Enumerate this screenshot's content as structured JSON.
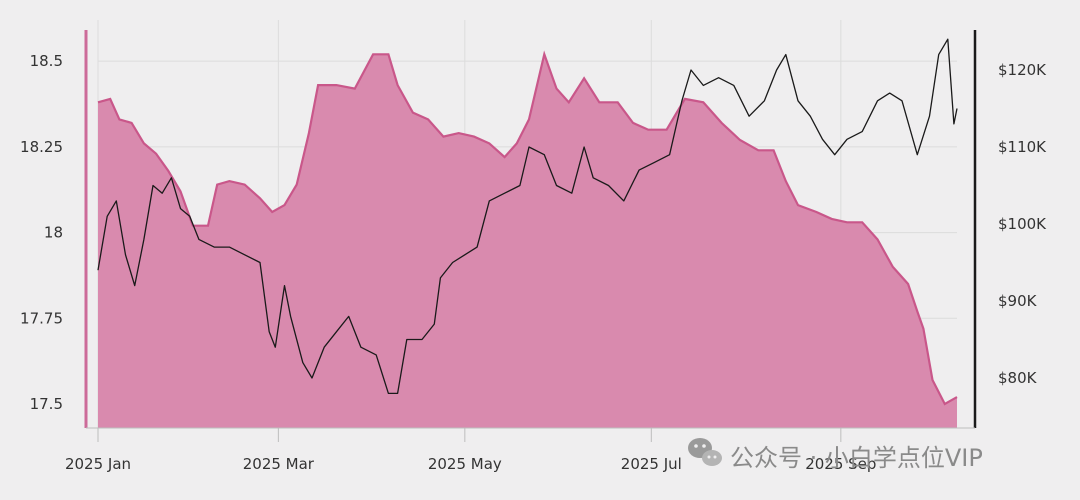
{
  "chart_data": {
    "type": "area",
    "title": "",
    "xlabel": "",
    "ylabel_left": "",
    "ylabel_right": "",
    "x_ticks": [
      "2025 Jan",
      "2025 Mar",
      "2025 May",
      "2025 Jul",
      "2025 Sep"
    ],
    "x_tick_dates": [
      "2025-01-01",
      "2025-03-01",
      "2025-05-01",
      "2025-07-01",
      "2025-09-01"
    ],
    "xlim": [
      "2025-01-01",
      "2025-10-09"
    ],
    "y_left": {
      "ticks": [
        "18.5",
        "18.25",
        "18",
        "17.75",
        "17.5"
      ],
      "tick_values": [
        18.5,
        18.25,
        18.0,
        17.75,
        17.5
      ],
      "lim": [
        17.43,
        18.62
      ]
    },
    "y_right": {
      "ticks": [
        "$120K",
        "$110K",
        "$100K",
        "$90K",
        "$80K"
      ],
      "tick_values": [
        120000,
        110000,
        100000,
        90000,
        80000
      ],
      "lim": [
        73500,
        126500
      ]
    },
    "grid": true,
    "colors": {
      "area_fill": "#d98aae",
      "area_line": "#c9578a",
      "price_line": "#1a1a1a",
      "left_axis": "#cc6b99",
      "right_axis": "#1a1a1a",
      "grid": "#dcdcdc",
      "background": "#efeeef"
    },
    "series": [
      {
        "axis": "left",
        "style": "area",
        "points": [
          [
            "2025-01-01",
            18.38
          ],
          [
            "2025-01-05",
            18.39
          ],
          [
            "2025-01-08",
            18.33
          ],
          [
            "2025-01-12",
            18.32
          ],
          [
            "2025-01-16",
            18.26
          ],
          [
            "2025-01-20",
            18.23
          ],
          [
            "2025-01-24",
            18.18
          ],
          [
            "2025-01-28",
            18.12
          ],
          [
            "2025-02-01",
            18.02
          ],
          [
            "2025-02-06",
            18.02
          ],
          [
            "2025-02-09",
            18.14
          ],
          [
            "2025-02-13",
            18.15
          ],
          [
            "2025-02-18",
            18.14
          ],
          [
            "2025-02-23",
            18.1
          ],
          [
            "2025-02-27",
            18.06
          ],
          [
            "2025-03-03",
            18.08
          ],
          [
            "2025-03-07",
            18.14
          ],
          [
            "2025-03-11",
            18.29
          ],
          [
            "2025-03-14",
            18.43
          ],
          [
            "2025-03-20",
            18.43
          ],
          [
            "2025-03-26",
            18.42
          ],
          [
            "2025-04-01",
            18.52
          ],
          [
            "2025-04-06",
            18.52
          ],
          [
            "2025-04-09",
            18.43
          ],
          [
            "2025-04-14",
            18.35
          ],
          [
            "2025-04-19",
            18.33
          ],
          [
            "2025-04-24",
            18.28
          ],
          [
            "2025-04-29",
            18.29
          ],
          [
            "2025-05-04",
            18.28
          ],
          [
            "2025-05-09",
            18.26
          ],
          [
            "2025-05-14",
            18.22
          ],
          [
            "2025-05-18",
            18.26
          ],
          [
            "2025-05-22",
            18.33
          ],
          [
            "2025-05-27",
            18.52
          ],
          [
            "2025-05-31",
            18.42
          ],
          [
            "2025-06-04",
            18.38
          ],
          [
            "2025-06-09",
            18.45
          ],
          [
            "2025-06-14",
            18.38
          ],
          [
            "2025-06-20",
            18.38
          ],
          [
            "2025-06-25",
            18.32
          ],
          [
            "2025-06-30",
            18.3
          ],
          [
            "2025-07-06",
            18.3
          ],
          [
            "2025-07-12",
            18.39
          ],
          [
            "2025-07-18",
            18.38
          ],
          [
            "2025-07-24",
            18.32
          ],
          [
            "2025-07-30",
            18.27
          ],
          [
            "2025-08-05",
            18.24
          ],
          [
            "2025-08-10",
            18.24
          ],
          [
            "2025-08-14",
            18.15
          ],
          [
            "2025-08-18",
            18.08
          ],
          [
            "2025-08-24",
            18.06
          ],
          [
            "2025-08-29",
            18.04
          ],
          [
            "2025-09-03",
            18.03
          ],
          [
            "2025-09-08",
            18.03
          ],
          [
            "2025-09-13",
            17.98
          ],
          [
            "2025-09-18",
            17.9
          ],
          [
            "2025-09-23",
            17.85
          ],
          [
            "2025-09-26",
            17.77
          ],
          [
            "2025-09-28",
            17.72
          ],
          [
            "2025-10-01",
            17.57
          ],
          [
            "2025-10-05",
            17.5
          ],
          [
            "2025-10-09",
            17.52
          ]
        ]
      },
      {
        "axis": "right",
        "style": "line",
        "points": [
          [
            "2025-01-01",
            94000
          ],
          [
            "2025-01-04",
            101000
          ],
          [
            "2025-01-07",
            103000
          ],
          [
            "2025-01-10",
            96000
          ],
          [
            "2025-01-13",
            92000
          ],
          [
            "2025-01-16",
            98000
          ],
          [
            "2025-01-19",
            105000
          ],
          [
            "2025-01-22",
            104000
          ],
          [
            "2025-01-25",
            106000
          ],
          [
            "2025-01-28",
            102000
          ],
          [
            "2025-01-31",
            101000
          ],
          [
            "2025-02-03",
            98000
          ],
          [
            "2025-02-08",
            97000
          ],
          [
            "2025-02-13",
            97000
          ],
          [
            "2025-02-18",
            96000
          ],
          [
            "2025-02-23",
            95000
          ],
          [
            "2025-02-26",
            86000
          ],
          [
            "2025-02-28",
            84000
          ],
          [
            "2025-03-03",
            92000
          ],
          [
            "2025-03-05",
            88000
          ],
          [
            "2025-03-09",
            82000
          ],
          [
            "2025-03-12",
            80000
          ],
          [
            "2025-03-16",
            84000
          ],
          [
            "2025-03-20",
            86000
          ],
          [
            "2025-03-24",
            88000
          ],
          [
            "2025-03-28",
            84000
          ],
          [
            "2025-04-02",
            83000
          ],
          [
            "2025-04-06",
            78000
          ],
          [
            "2025-04-09",
            78000
          ],
          [
            "2025-04-12",
            85000
          ],
          [
            "2025-04-17",
            85000
          ],
          [
            "2025-04-21",
            87000
          ],
          [
            "2025-04-23",
            93000
          ],
          [
            "2025-04-27",
            95000
          ],
          [
            "2025-05-01",
            96000
          ],
          [
            "2025-05-05",
            97000
          ],
          [
            "2025-05-09",
            103000
          ],
          [
            "2025-05-14",
            104000
          ],
          [
            "2025-05-19",
            105000
          ],
          [
            "2025-05-22",
            110000
          ],
          [
            "2025-05-27",
            109000
          ],
          [
            "2025-05-31",
            105000
          ],
          [
            "2025-06-05",
            104000
          ],
          [
            "2025-06-09",
            110000
          ],
          [
            "2025-06-12",
            106000
          ],
          [
            "2025-06-17",
            105000
          ],
          [
            "2025-06-22",
            103000
          ],
          [
            "2025-06-27",
            107000
          ],
          [
            "2025-07-02",
            108000
          ],
          [
            "2025-07-07",
            109000
          ],
          [
            "2025-07-11",
            116000
          ],
          [
            "2025-07-14",
            120000
          ],
          [
            "2025-07-18",
            118000
          ],
          [
            "2025-07-23",
            119000
          ],
          [
            "2025-07-28",
            118000
          ],
          [
            "2025-08-02",
            114000
          ],
          [
            "2025-08-07",
            116000
          ],
          [
            "2025-08-11",
            120000
          ],
          [
            "2025-08-14",
            122000
          ],
          [
            "2025-08-18",
            116000
          ],
          [
            "2025-08-22",
            114000
          ],
          [
            "2025-08-26",
            111000
          ],
          [
            "2025-08-30",
            109000
          ],
          [
            "2025-09-03",
            111000
          ],
          [
            "2025-09-08",
            112000
          ],
          [
            "2025-09-13",
            116000
          ],
          [
            "2025-09-17",
            117000
          ],
          [
            "2025-09-21",
            116000
          ],
          [
            "2025-09-26",
            109000
          ],
          [
            "2025-09-30",
            114000
          ],
          [
            "2025-10-03",
            122000
          ],
          [
            "2025-10-06",
            124000
          ],
          [
            "2025-10-08",
            113000
          ],
          [
            "2025-10-09",
            115000
          ]
        ]
      }
    ]
  },
  "watermark": {
    "text": "公众号 · 小白学点位VIP",
    "icon": "wechat-icon"
  }
}
